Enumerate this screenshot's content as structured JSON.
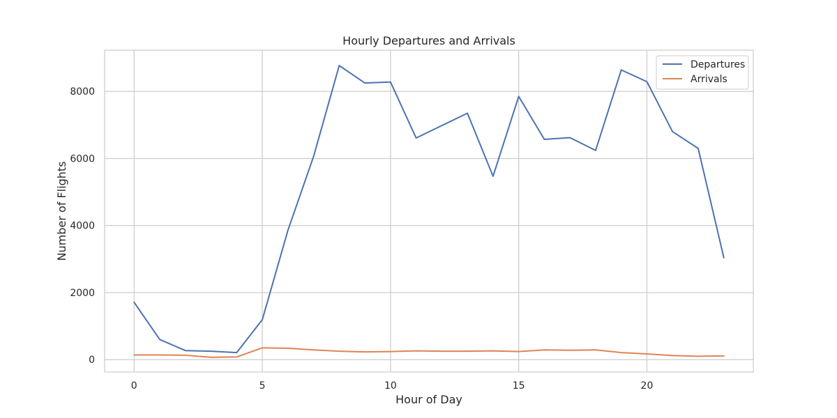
{
  "chart_data": {
    "type": "line",
    "title": "Hourly Departures and Arrivals",
    "xlabel": "Hour of Day",
    "ylabel": "Number of Flights",
    "x": [
      0,
      1,
      2,
      3,
      4,
      5,
      6,
      7,
      8,
      9,
      10,
      11,
      12,
      13,
      14,
      15,
      16,
      17,
      18,
      19,
      20,
      21,
      22,
      23
    ],
    "xlim": [
      -1.15,
      24.15
    ],
    "ylim": [
      -370,
      9230
    ],
    "xticks": [
      0,
      5,
      10,
      15,
      20
    ],
    "yticks": [
      0,
      2000,
      4000,
      6000,
      8000
    ],
    "grid": true,
    "legend_position": "top-right",
    "series": [
      {
        "name": "Departures",
        "color": "#4c72b0",
        "values": [
          1710,
          600,
          270,
          250,
          210,
          1190,
          3860,
          6060,
          8770,
          8250,
          8280,
          6610,
          6980,
          7350,
          5470,
          7850,
          6570,
          6620,
          6240,
          8640,
          8290,
          6800,
          6300,
          3040
        ]
      },
      {
        "name": "Arrivals",
        "color": "#dd8452",
        "values": [
          140,
          140,
          130,
          70,
          80,
          350,
          340,
          290,
          250,
          230,
          240,
          260,
          250,
          250,
          260,
          240,
          290,
          280,
          290,
          210,
          170,
          120,
          100,
          110
        ]
      }
    ]
  }
}
